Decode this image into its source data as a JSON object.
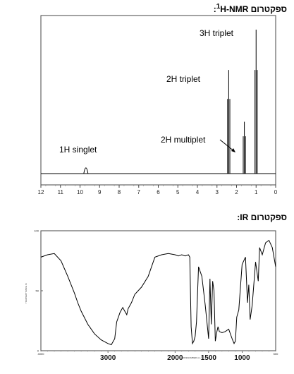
{
  "nmr_heading": {
    "prefix": "ספקטרום ",
    "sup": "1",
    "label": "H-NMR",
    "suffix": ":"
  },
  "ir_heading": {
    "text": "ספקטרום IR:"
  },
  "chart_data": [
    {
      "type": "line",
      "title": "",
      "xlabel": "",
      "ylabel": "",
      "x_reversed": true,
      "xlim": [
        12,
        0
      ],
      "x_ticks": [
        "12",
        "11",
        "10",
        "9",
        "8",
        "7",
        "6",
        "5",
        "4",
        "3",
        "2",
        "1",
        "0"
      ],
      "grid": false,
      "peaks": [
        {
          "shift": 9.7,
          "height": 0.05,
          "label": "1H singlet"
        },
        {
          "shift": 2.4,
          "height": 0.72,
          "label": "2H triplet"
        },
        {
          "shift": 1.6,
          "height": 0.36,
          "label": "2H multiplet"
        },
        {
          "shift": 1.0,
          "height": 1.0,
          "label": "3H triplet"
        }
      ]
    },
    {
      "type": "line",
      "title": "",
      "xlabel": "WAVENUMBER cm-1",
      "ylabel": "TRANSMITTANCE %",
      "x_reversed": true,
      "xlim": [
        4000,
        500
      ],
      "ylim": [
        0,
        100
      ],
      "x_ticks_major": [
        "3000",
        "2000",
        "1500",
        "1000"
      ],
      "x_ticks_minor": [
        "4000",
        "500"
      ],
      "y_ticks": [
        "100",
        "50",
        "0"
      ],
      "series": [
        {
          "x": [
            4000,
            3900,
            3800,
            3700,
            3600,
            3500,
            3450,
            3400,
            3300,
            3200,
            3100,
            3000,
            2950,
            2900,
            2870,
            2820,
            2780,
            2740,
            2720,
            2700,
            2650,
            2600,
            2500,
            2400,
            2300,
            2200,
            2100,
            2000,
            1950,
            1900,
            1850,
            1800,
            1780,
            1760,
            1740,
            1720,
            1700,
            1680,
            1650,
            1600,
            1550,
            1500,
            1480,
            1460,
            1440,
            1420,
            1400,
            1380,
            1360,
            1340,
            1300,
            1250,
            1200,
            1150,
            1120,
            1100,
            1080,
            1050,
            1000,
            950,
            920,
            900,
            880,
            850,
            800,
            760,
            740,
            700,
            650,
            600,
            550,
            500
          ],
          "y": [
            78,
            80,
            81,
            75,
            62,
            48,
            40,
            33,
            22,
            14,
            9,
            6,
            5,
            10,
            24,
            32,
            36,
            32,
            30,
            35,
            40,
            47,
            53,
            62,
            78,
            80,
            81,
            80,
            79,
            80,
            79,
            80,
            78,
            20,
            6,
            8,
            12,
            24,
            70,
            62,
            38,
            10,
            60,
            22,
            58,
            50,
            8,
            15,
            20,
            16,
            15,
            16,
            18,
            10,
            6,
            8,
            28,
            34,
            72,
            78,
            40,
            55,
            26,
            38,
            74,
            58,
            86,
            80,
            90,
            92,
            86,
            70
          ]
        }
      ]
    }
  ]
}
